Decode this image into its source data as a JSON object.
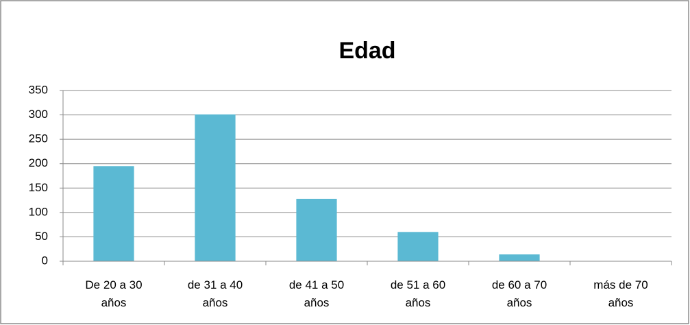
{
  "chart_data": {
    "type": "bar",
    "title": "Edad",
    "categories": [
      "De 20 a 30 años",
      "de 31 a 40 años",
      "de 41 a 50 años",
      "de 51 a 60 años",
      "de 60 a 70 años",
      "más de 70 años"
    ],
    "values": [
      195,
      301,
      128,
      60,
      14,
      0
    ],
    "color": "#5bb9d3",
    "ylim": [
      0,
      350
    ],
    "yticks": [
      0,
      50,
      100,
      150,
      200,
      250,
      300,
      350
    ],
    "grid": true
  }
}
